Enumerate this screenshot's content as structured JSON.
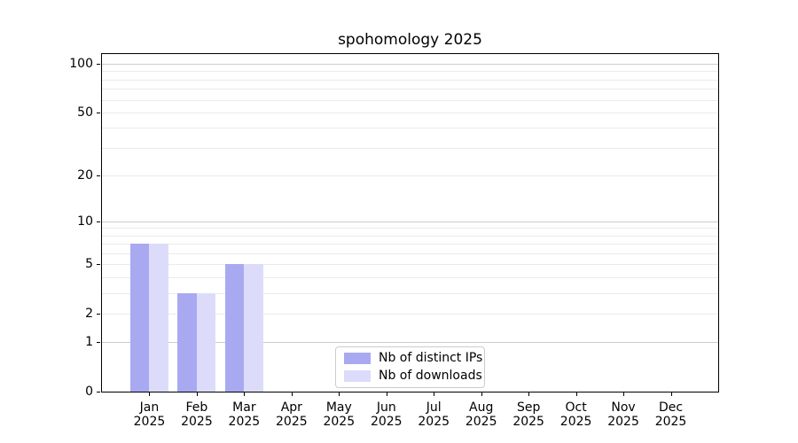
{
  "title": "spohomology 2025",
  "chart_data": {
    "type": "bar",
    "categories": [
      "Jan",
      "Feb",
      "Mar",
      "Apr",
      "May",
      "Jun",
      "Jul",
      "Aug",
      "Sep",
      "Oct",
      "Nov",
      "Dec"
    ],
    "category_year": "2025",
    "series": [
      {
        "name": "Nb of distinct IPs",
        "color": "#a9a9f2",
        "values": [
          7,
          3,
          5,
          0,
          0,
          0,
          0,
          0,
          0,
          0,
          0,
          0
        ]
      },
      {
        "name": "Nb of downloads",
        "color": "#dcdcfa",
        "values": [
          7,
          3,
          5,
          0,
          0,
          0,
          0,
          0,
          0,
          0,
          0,
          0
        ]
      }
    ],
    "xlabel": "",
    "ylabel": "",
    "yscale": "log1p",
    "ylim": [
      0,
      115
    ],
    "yticks": [
      0,
      1,
      2,
      5,
      10,
      20,
      50,
      100
    ],
    "gridlines": {
      "major": [
        1,
        10,
        100
      ],
      "minor": [
        2,
        3,
        4,
        5,
        6,
        7,
        8,
        9,
        20,
        30,
        40,
        50,
        60,
        70,
        80,
        90
      ]
    },
    "legend_position": "lower center",
    "colors": {
      "major_grid": "#cccccc",
      "minor_grid": "#ebebeb",
      "spine": "#000000",
      "legend_border": "#cccccc",
      "background": "#ffffff"
    }
  }
}
